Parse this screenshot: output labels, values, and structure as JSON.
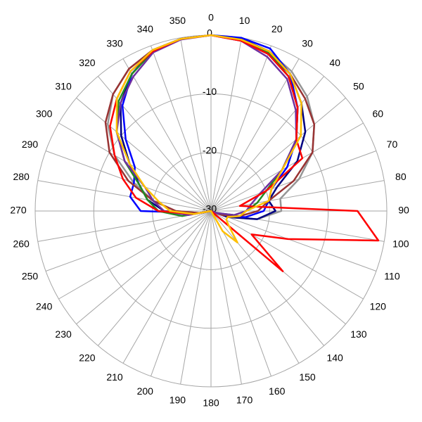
{
  "chart_data": {
    "type": "polar",
    "x": [
      0,
      10,
      20,
      30,
      40,
      50,
      60,
      70,
      80,
      90,
      100,
      110,
      120,
      130,
      140,
      150,
      160,
      170,
      180,
      190,
      200,
      210,
      220,
      230,
      240,
      250,
      260,
      270,
      280,
      290,
      300,
      310,
      320,
      330,
      340,
      350
    ],
    "xticks": [
      0,
      10,
      20,
      30,
      40,
      50,
      60,
      70,
      80,
      90,
      100,
      110,
      120,
      130,
      140,
      150,
      160,
      170,
      180,
      190,
      200,
      210,
      220,
      230,
      240,
      250,
      260,
      270,
      280,
      290,
      300,
      310,
      320,
      330,
      340,
      350
    ],
    "ylim": [
      -30,
      0
    ],
    "yticks": [
      -30,
      -20,
      -10,
      0
    ],
    "grid": true,
    "series": [
      {
        "color": "#969696",
        "values": [
          0,
          -0.3,
          -1,
          -2.5,
          -4.5,
          -7,
          -10,
          -14,
          -18,
          -18,
          -22,
          -27,
          -30,
          -30,
          -30,
          -30,
          -30,
          -30,
          -30,
          -30,
          -30,
          -30,
          -30,
          -30,
          -30,
          -30,
          -28,
          -24,
          -20,
          -16,
          -11,
          -7,
          -4,
          -2,
          -0.8,
          -0.2
        ]
      },
      {
        "color": "#000080",
        "values": [
          0,
          -0.2,
          -1,
          -3,
          -6,
          -9,
          -13,
          -18,
          -20,
          -19,
          -22,
          -27,
          -30,
          -30,
          -30,
          -30,
          -30,
          -30,
          -30,
          -30,
          -30,
          -30,
          -30,
          -30,
          -30,
          -30,
          -27,
          -22,
          -19,
          -17,
          -14,
          -10,
          -6,
          -3,
          -1,
          -0.2
        ]
      },
      {
        "color": "#0000ff",
        "values": [
          0,
          0,
          -0.5,
          -3,
          -7,
          -11,
          -15,
          -19,
          -20,
          -21,
          -24,
          -28,
          -30,
          -30,
          -30,
          -30,
          -30,
          -30,
          -30,
          -30,
          -30,
          -30,
          -30,
          -30,
          -30,
          -30,
          -28,
          -18,
          -16,
          -16,
          -15,
          -11,
          -6.5,
          -3,
          -0.8,
          -0.2
        ]
      },
      {
        "color": "#993333",
        "values": [
          0,
          -0.5,
          -1.5,
          -3,
          -5,
          -7,
          -10,
          -15,
          -20,
          -22,
          -25,
          -28,
          -30,
          -30,
          -30,
          -30,
          -30,
          -30,
          -30,
          -30,
          -30,
          -30,
          -30,
          -30,
          -30,
          -30,
          -28,
          -24,
          -20,
          -15,
          -10,
          -6.5,
          -4,
          -2,
          -0.8,
          -0.2
        ]
      },
      {
        "color": "#228b22",
        "values": [
          0,
          -0.3,
          -1.2,
          -3.5,
          -7,
          -11,
          -16,
          -20,
          -22,
          -24,
          -26,
          -29,
          -30,
          -30,
          -30,
          -30,
          -30,
          -30,
          -30,
          -30,
          -30,
          -30,
          -30,
          -30,
          -30,
          -30,
          -25,
          -21,
          -19,
          -17,
          -13,
          -9,
          -5.5,
          -3,
          -1,
          -0.2
        ]
      },
      {
        "color": "#7030a0",
        "values": [
          0,
          -0.5,
          -2,
          -4,
          -7.5,
          -11,
          -16,
          -21,
          -23,
          -24,
          -26,
          -29,
          -30,
          -30,
          -30,
          -30,
          -30,
          -30,
          -30,
          -30,
          -30,
          -30,
          -30,
          -30,
          -30,
          -30,
          -26,
          -22,
          -20,
          -18,
          -13,
          -9,
          -6,
          -3.5,
          -1.2,
          -0.3
        ]
      },
      {
        "color": "#ff0000",
        "values": [
          0,
          -0.5,
          -1.5,
          -3.5,
          -7,
          -11,
          -12,
          -20,
          -25,
          -5,
          -1,
          -16,
          -22,
          -14,
          -30,
          -30,
          -30,
          -30,
          -30,
          -30,
          -30,
          -30,
          -30,
          -30,
          -30,
          -30,
          -27,
          -21,
          -17,
          -14,
          -11,
          -7.5,
          -5,
          -2.5,
          -1,
          -0.2
        ]
      },
      {
        "color": "#ffc000",
        "values": [
          0,
          -0.3,
          -1,
          -3,
          -6,
          -10,
          -16,
          -19,
          -20,
          -24,
          -25,
          -27,
          -27,
          -26,
          -23,
          -26,
          -30,
          -30,
          -30,
          -30,
          -30,
          -30,
          -30,
          -30,
          -30,
          -30,
          -27,
          -23,
          -21,
          -18,
          -14,
          -9,
          -5,
          -2.5,
          -0.8,
          -0.2
        ]
      }
    ]
  }
}
